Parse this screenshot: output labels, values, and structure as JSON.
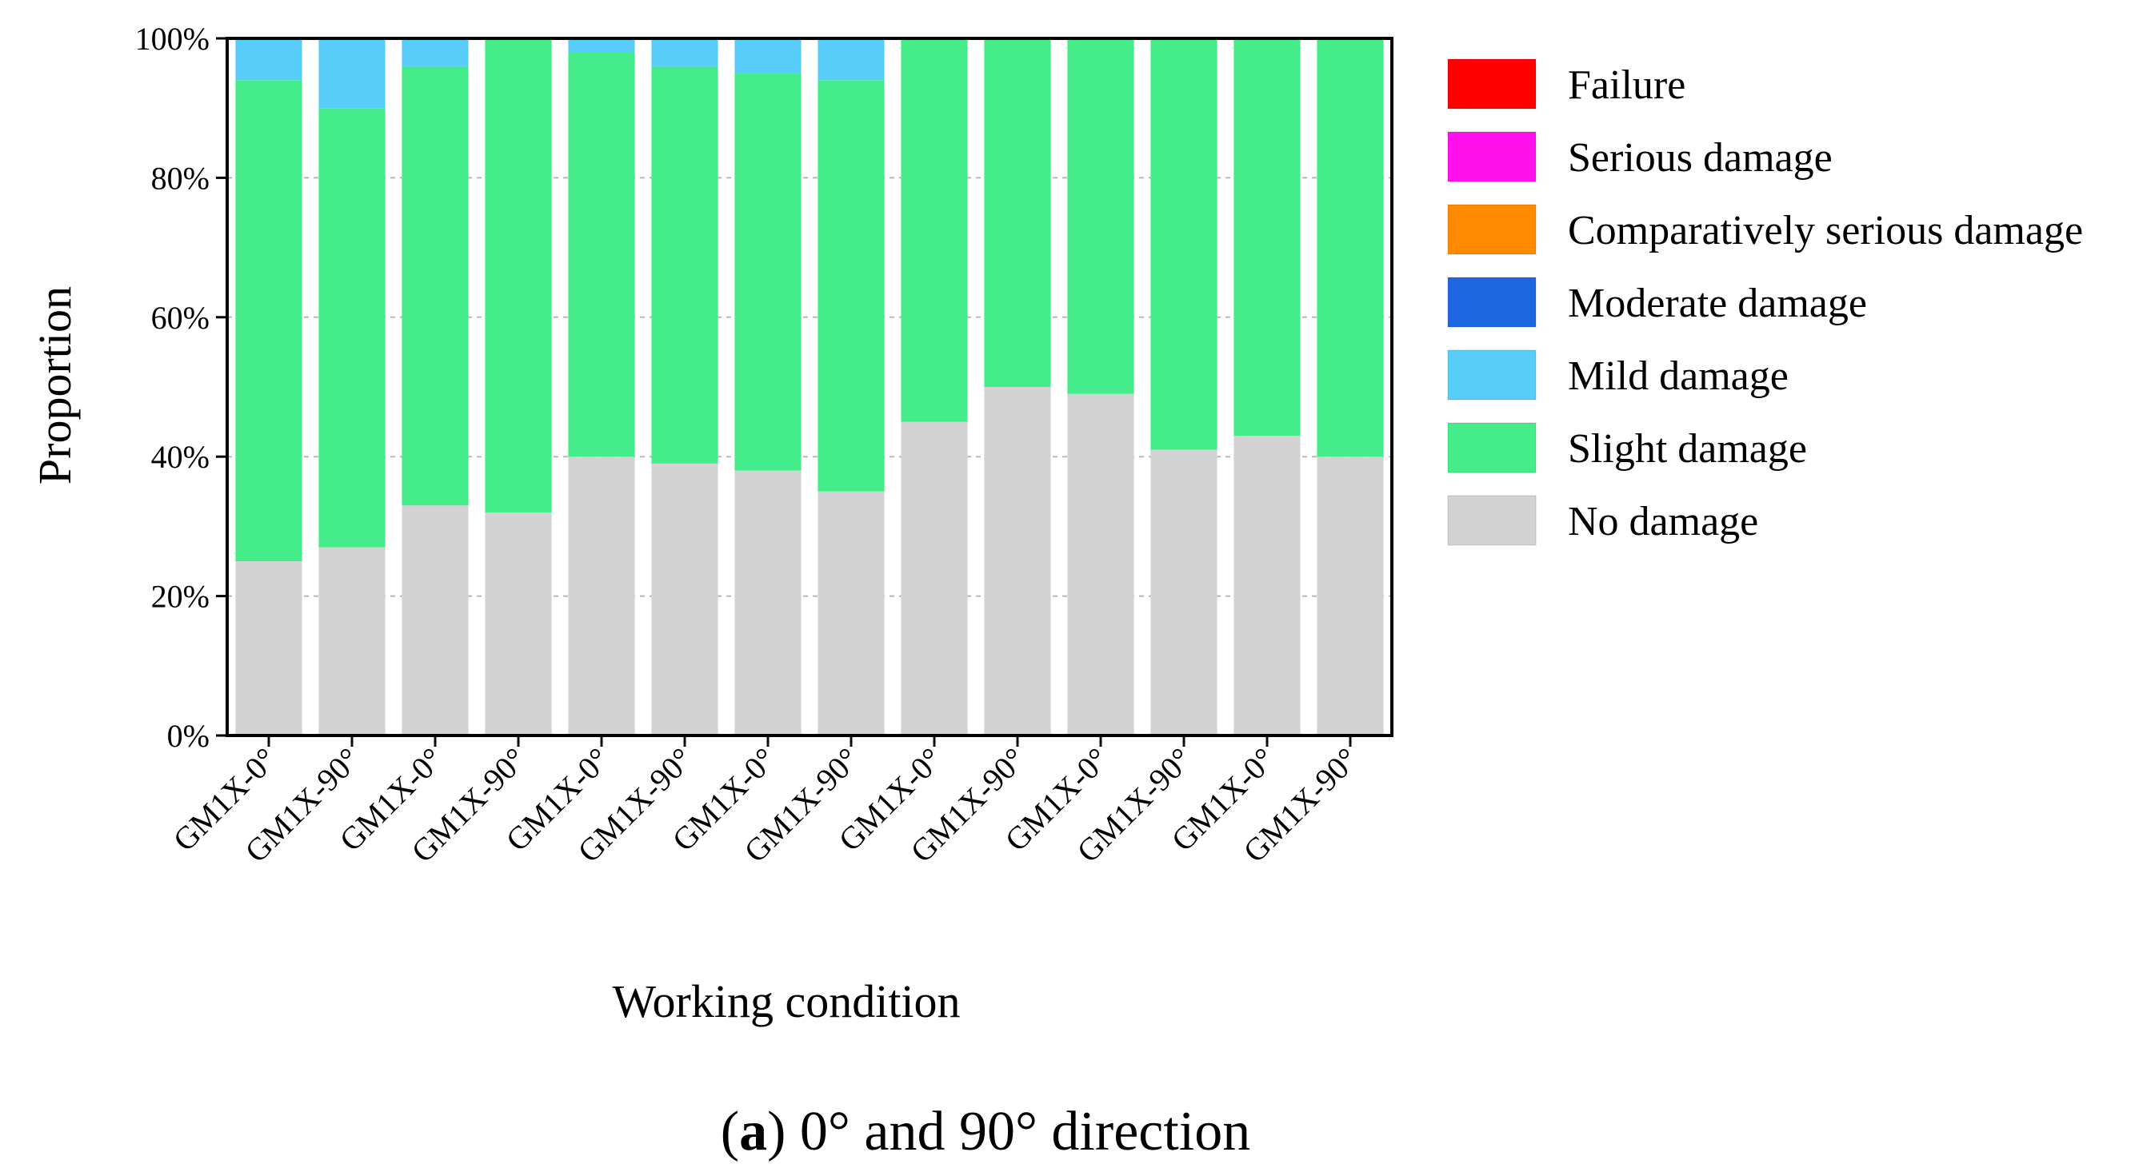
{
  "chart_data": {
    "type": "bar",
    "stacked": true,
    "title": "",
    "xlabel": "Working condition",
    "ylabel": "Proportion",
    "ylim": [
      0,
      100
    ],
    "y_ticks": [
      "0%",
      "20%",
      "40%",
      "60%",
      "80%",
      "100%"
    ],
    "grid": "horizontal dashed",
    "legend_position": "right",
    "categories": [
      "GM1X-0°",
      "GM1X-90°",
      "GM1X-0°",
      "GM1X-90°",
      "GM1X-0°",
      "GM1X-90°",
      "GM1X-0°",
      "GM1X-90°",
      "GM1X-0°",
      "GM1X-90°",
      "GM1X-0°",
      "GM1X-90°",
      "GM1X-0°",
      "GM1X-90°"
    ],
    "series": [
      {
        "name": "No damage",
        "color": "#d3d3d3",
        "values": [
          25,
          27,
          33,
          32,
          40,
          39,
          38,
          35,
          45,
          50,
          49,
          41,
          43,
          40
        ]
      },
      {
        "name": "Slight damage",
        "color": "#44ed8a",
        "values": [
          69,
          63,
          63,
          68,
          58,
          57,
          57,
          59,
          55,
          50,
          51,
          59,
          57,
          60
        ]
      },
      {
        "name": "Mild damage",
        "color": "#58cdfa",
        "values": [
          6,
          10,
          4,
          0,
          2,
          4,
          5,
          6,
          0,
          0,
          0,
          0,
          0,
          0
        ]
      },
      {
        "name": "Moderate damage",
        "color": "#1e66e0",
        "values": [
          0,
          0,
          0,
          0,
          0,
          0,
          0,
          0,
          0,
          0,
          0,
          0,
          0,
          0
        ]
      },
      {
        "name": "Comparatively serious damage",
        "color": "#ff8a00",
        "values": [
          0,
          0,
          0,
          0,
          0,
          0,
          0,
          0,
          0,
          0,
          0,
          0,
          0,
          0
        ]
      },
      {
        "name": "Serious damage",
        "color": "#ff10ec",
        "values": [
          0,
          0,
          0,
          0,
          0,
          0,
          0,
          0,
          0,
          0,
          0,
          0,
          0,
          0
        ]
      },
      {
        "name": "Failure",
        "color": "#ff0000",
        "values": [
          0,
          0,
          0,
          0,
          0,
          0,
          0,
          0,
          0,
          0,
          0,
          0,
          0,
          0
        ]
      }
    ],
    "legend_order": [
      "Failure",
      "Serious damage",
      "Comparatively serious damage",
      "Moderate damage",
      "Mild damage",
      "Slight damage",
      "No damage"
    ]
  },
  "caption": {
    "letter": "a",
    "text": "0° and 90° direction"
  }
}
